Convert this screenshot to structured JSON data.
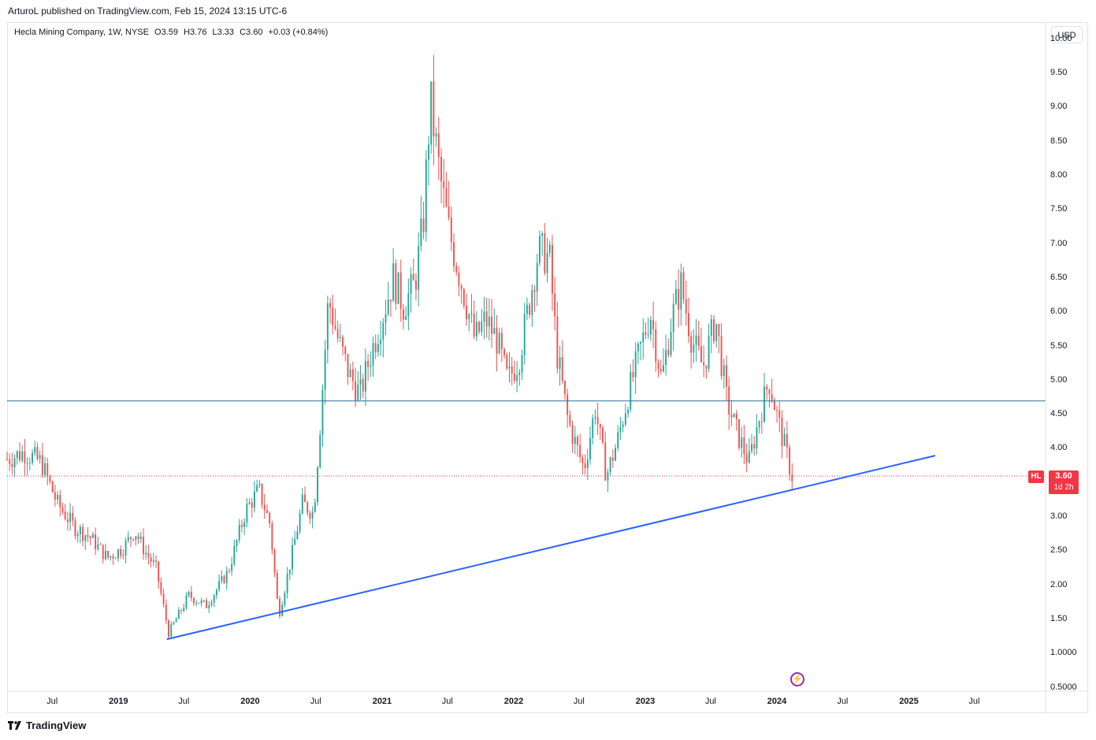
{
  "publisher_line": "ArturoL published on TradingView.com, Feb 15, 2024 13:15 UTC-6",
  "legend": {
    "name": "Hecla Mining Company, 1W, NYSE",
    "open": "O3.59",
    "high": "H3.76",
    "low": "L3.33",
    "close": "C3.60",
    "change": "+0.03 (+0.84%)"
  },
  "currency": "USD",
  "symbol_tag": "HL",
  "price_tag": {
    "price": "3.60",
    "countdown": "1d 2h"
  },
  "footer_logo": "TradingView",
  "colors": {
    "up": "#26a69a",
    "down": "#ef5350",
    "trendline": "#2962ff",
    "horizontal_line": "#2a6f97",
    "last_price_line": "#f23645"
  },
  "icons": {
    "events": "lightning-icon",
    "logo": "tradingview-logo-icon"
  },
  "chart_data": {
    "type": "candlestick",
    "symbol": "HL",
    "interval": "1W",
    "y_ticks": [
      "10.00",
      "9.50",
      "9.00",
      "8.50",
      "8.00",
      "7.50",
      "7.00",
      "6.50",
      "6.00",
      "5.50",
      "5.00",
      "4.50",
      "4.00",
      "3.50",
      "3.00",
      "2.50",
      "2.00",
      "1.50",
      "1.0000",
      "0.5000"
    ],
    "x_ticks": [
      {
        "label": "Jul",
        "date": "2018-07-01",
        "bold": false
      },
      {
        "label": "2019",
        "date": "2019-01-01",
        "bold": true
      },
      {
        "label": "Jul",
        "date": "2019-07-01",
        "bold": false
      },
      {
        "label": "2020",
        "date": "2020-01-01",
        "bold": true
      },
      {
        "label": "Jul",
        "date": "2020-07-01",
        "bold": false
      },
      {
        "label": "2021",
        "date": "2021-01-01",
        "bold": true
      },
      {
        "label": "Jul",
        "date": "2021-07-01",
        "bold": false
      },
      {
        "label": "2022",
        "date": "2022-01-01",
        "bold": true
      },
      {
        "label": "Jul",
        "date": "2022-07-01",
        "bold": false
      },
      {
        "label": "2023",
        "date": "2023-01-01",
        "bold": true
      },
      {
        "label": "Jul",
        "date": "2023-07-01",
        "bold": false
      },
      {
        "label": "2024",
        "date": "2024-01-01",
        "bold": true
      },
      {
        "label": "Jul",
        "date": "2024-07-01",
        "bold": false
      },
      {
        "label": "2025",
        "date": "2025-01-01",
        "bold": true
      },
      {
        "label": "Jul",
        "date": "2025-07-01",
        "bold": false
      }
    ],
    "x_range": [
      "2018-02-26",
      "2026-01-15"
    ],
    "y_range": [
      0.45,
      10.25
    ],
    "last_price": 3.6,
    "horizontal_line": 4.7,
    "trendline": [
      {
        "date": "2019-05-15",
        "price": 1.21
      },
      {
        "date": "2025-03-15",
        "price": 3.9
      }
    ],
    "close_path": [
      {
        "date": "2018-02-26",
        "price": 3.85
      },
      {
        "date": "2018-04-15",
        "price": 3.95
      },
      {
        "date": "2018-06-01",
        "price": 3.8
      },
      {
        "date": "2018-07-15",
        "price": 3.2
      },
      {
        "date": "2018-09-01",
        "price": 2.85
      },
      {
        "date": "2018-10-15",
        "price": 2.7
      },
      {
        "date": "2018-12-01",
        "price": 2.4
      },
      {
        "date": "2019-01-15",
        "price": 2.55
      },
      {
        "date": "2019-02-15",
        "price": 2.8
      },
      {
        "date": "2019-03-15",
        "price": 2.5
      },
      {
        "date": "2019-04-15",
        "price": 2.25
      },
      {
        "date": "2019-05-20",
        "price": 1.3
      },
      {
        "date": "2019-07-15",
        "price": 1.85
      },
      {
        "date": "2019-09-01",
        "price": 1.7
      },
      {
        "date": "2019-11-01",
        "price": 2.2
      },
      {
        "date": "2019-12-20",
        "price": 3.1
      },
      {
        "date": "2020-01-25",
        "price": 3.4
      },
      {
        "date": "2020-02-25",
        "price": 2.9
      },
      {
        "date": "2020-03-20",
        "price": 1.55
      },
      {
        "date": "2020-04-20",
        "price": 2.3
      },
      {
        "date": "2020-05-25",
        "price": 3.2
      },
      {
        "date": "2020-06-25",
        "price": 3.05
      },
      {
        "date": "2020-07-15",
        "price": 4.5
      },
      {
        "date": "2020-08-05",
        "price": 6.2
      },
      {
        "date": "2020-09-01",
        "price": 5.6
      },
      {
        "date": "2020-10-01",
        "price": 5.1
      },
      {
        "date": "2020-11-01",
        "price": 4.8
      },
      {
        "date": "2020-12-01",
        "price": 5.4
      },
      {
        "date": "2021-01-05",
        "price": 6.0
      },
      {
        "date": "2021-02-01",
        "price": 6.5
      },
      {
        "date": "2021-03-01",
        "price": 6.1
      },
      {
        "date": "2021-04-01",
        "price": 6.4
      },
      {
        "date": "2021-04-25",
        "price": 7.3
      },
      {
        "date": "2021-05-15",
        "price": 9.1
      },
      {
        "date": "2021-06-10",
        "price": 8.0
      },
      {
        "date": "2021-07-05",
        "price": 7.2
      },
      {
        "date": "2021-08-15",
        "price": 6.3
      },
      {
        "date": "2021-09-15",
        "price": 5.6
      },
      {
        "date": "2021-10-15",
        "price": 5.9
      },
      {
        "date": "2021-11-15",
        "price": 5.6
      },
      {
        "date": "2021-12-15",
        "price": 5.0
      },
      {
        "date": "2022-01-15",
        "price": 5.3
      },
      {
        "date": "2022-02-15",
        "price": 6.2
      },
      {
        "date": "2022-03-10",
        "price": 6.9
      },
      {
        "date": "2022-04-10",
        "price": 6.8
      },
      {
        "date": "2022-05-01",
        "price": 5.4
      },
      {
        "date": "2022-06-01",
        "price": 4.4
      },
      {
        "date": "2022-07-15",
        "price": 3.7
      },
      {
        "date": "2022-08-15",
        "price": 4.6
      },
      {
        "date": "2022-09-15",
        "price": 3.6
      },
      {
        "date": "2022-10-15",
        "price": 4.1
      },
      {
        "date": "2022-11-15",
        "price": 4.8
      },
      {
        "date": "2022-12-15",
        "price": 5.4
      },
      {
        "date": "2023-01-15",
        "price": 6.0
      },
      {
        "date": "2023-02-15",
        "price": 5.0
      },
      {
        "date": "2023-03-15",
        "price": 5.9
      },
      {
        "date": "2023-04-10",
        "price": 6.4
      },
      {
        "date": "2023-05-10",
        "price": 5.6
      },
      {
        "date": "2023-06-10",
        "price": 5.2
      },
      {
        "date": "2023-07-15",
        "price": 5.9
      },
      {
        "date": "2023-08-15",
        "price": 4.7
      },
      {
        "date": "2023-09-15",
        "price": 4.2
      },
      {
        "date": "2023-10-15",
        "price": 3.8
      },
      {
        "date": "2023-11-15",
        "price": 4.5
      },
      {
        "date": "2023-12-10",
        "price": 5.0
      },
      {
        "date": "2024-01-05",
        "price": 4.4
      },
      {
        "date": "2024-02-12",
        "price": 3.6
      }
    ]
  }
}
